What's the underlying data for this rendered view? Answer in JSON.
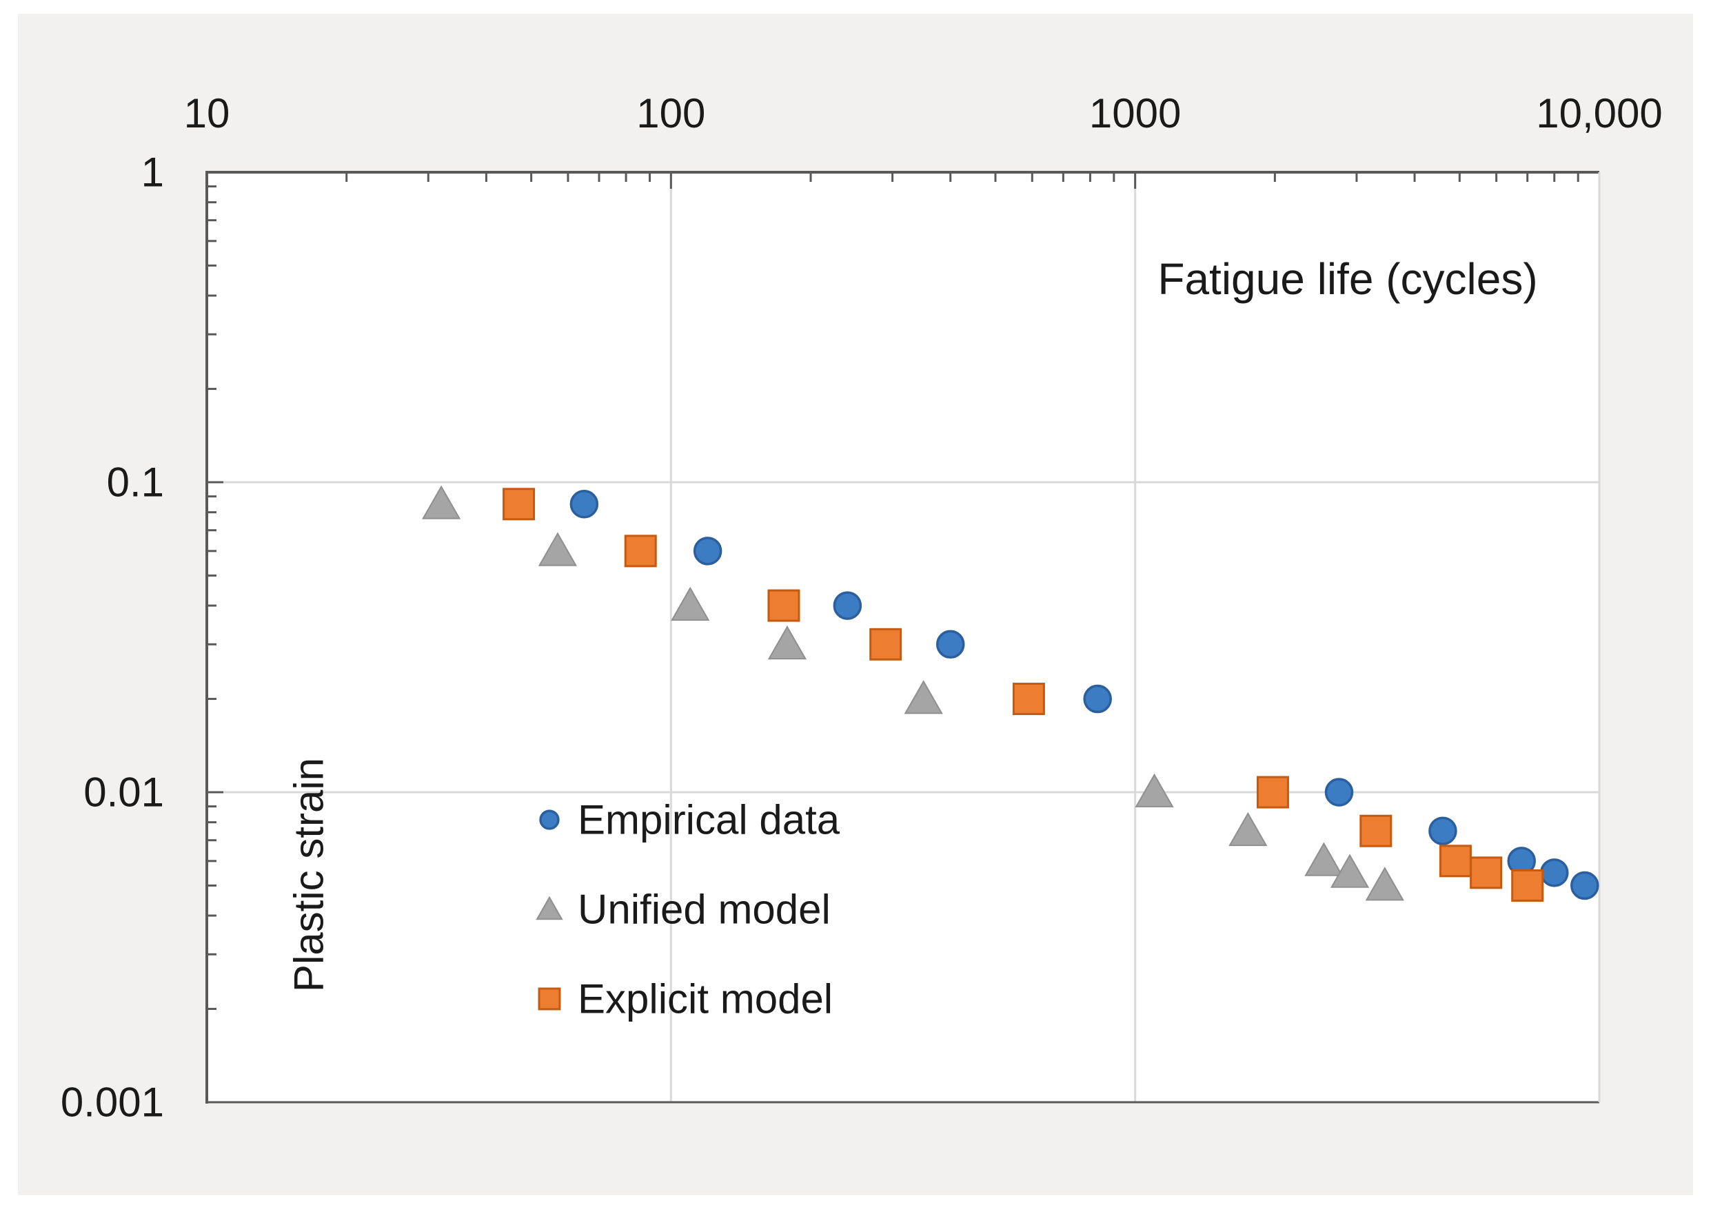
{
  "figure": {
    "background_page": "#ffffff",
    "background_canvas": "#f2f1f0",
    "plot_background": "#ffffff",
    "gridline_color": "#d9d9d9",
    "axis_color": "#595959",
    "text_color": "#1a1a1a"
  },
  "chart_data": {
    "type": "scatter",
    "title": "",
    "xlabel": "Fatigue life (cycles)",
    "ylabel": "Plastic strain",
    "x_axis": {
      "scale": "log",
      "position": "top",
      "min": 10,
      "max": 10000,
      "tick_labels": [
        "10",
        "100",
        "1000",
        "10,000"
      ],
      "tick_values": [
        10,
        100,
        1000,
        10000
      ],
      "minor_log_ticks": true
    },
    "y_axis": {
      "scale": "log",
      "position": "left",
      "min": 0.001,
      "max": 1,
      "tick_labels": [
        "1",
        "0.1",
        "0.01",
        "0.001"
      ],
      "tick_values": [
        1,
        0.1,
        0.01,
        0.001
      ],
      "minor_log_ticks": true
    },
    "grid": true,
    "legend": {
      "position": "inside-lower-left",
      "entries": [
        "Empirical data",
        "Unified model",
        "Explicit model"
      ]
    },
    "series": [
      {
        "name": "Empirical data",
        "marker": "circle",
        "color": "#3c7cc3",
        "edge_color": "#2b5f9e",
        "points": [
          {
            "x": 65,
            "y": 0.085
          },
          {
            "x": 120,
            "y": 0.06
          },
          {
            "x": 240,
            "y": 0.04
          },
          {
            "x": 400,
            "y": 0.03
          },
          {
            "x": 830,
            "y": 0.02
          },
          {
            "x": 2750,
            "y": 0.01
          },
          {
            "x": 4600,
            "y": 0.0075
          },
          {
            "x": 6800,
            "y": 0.006
          },
          {
            "x": 8000,
            "y": 0.0055
          },
          {
            "x": 9300,
            "y": 0.005
          }
        ]
      },
      {
        "name": "Unified model",
        "marker": "triangle",
        "color": "#a5a5a5",
        "edge_color": "#8f8f8f",
        "points": [
          {
            "x": 32,
            "y": 0.085
          },
          {
            "x": 57,
            "y": 0.06
          },
          {
            "x": 110,
            "y": 0.04
          },
          {
            "x": 178,
            "y": 0.03
          },
          {
            "x": 350,
            "y": 0.02
          },
          {
            "x": 1100,
            "y": 0.01
          },
          {
            "x": 1750,
            "y": 0.0075
          },
          {
            "x": 2550,
            "y": 0.006
          },
          {
            "x": 2900,
            "y": 0.0055
          },
          {
            "x": 3450,
            "y": 0.005
          }
        ]
      },
      {
        "name": "Explicit model",
        "marker": "square",
        "color": "#ed7d31",
        "edge_color": "#c55a11",
        "points": [
          {
            "x": 47,
            "y": 0.085
          },
          {
            "x": 86,
            "y": 0.06
          },
          {
            "x": 175,
            "y": 0.04
          },
          {
            "x": 290,
            "y": 0.03
          },
          {
            "x": 590,
            "y": 0.02
          },
          {
            "x": 1980,
            "y": 0.01
          },
          {
            "x": 3300,
            "y": 0.0075
          },
          {
            "x": 4900,
            "y": 0.006
          },
          {
            "x": 5700,
            "y": 0.0055
          },
          {
            "x": 7000,
            "y": 0.005
          }
        ]
      }
    ]
  }
}
